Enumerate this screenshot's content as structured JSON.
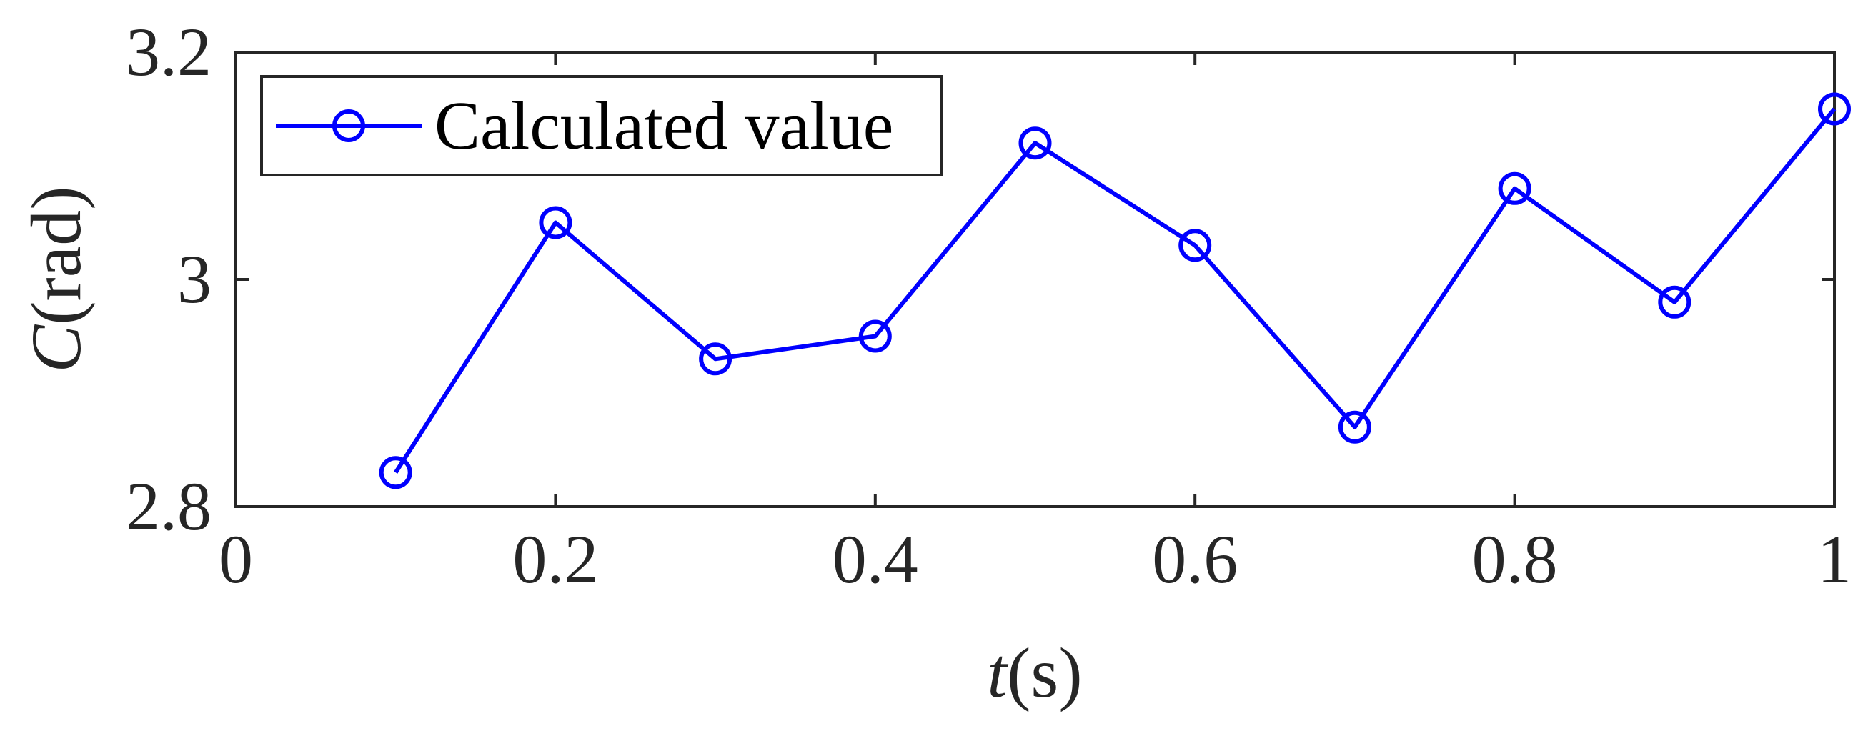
{
  "chart_data": {
    "type": "line",
    "x": [
      0.1,
      0.2,
      0.3,
      0.4,
      0.5,
      0.6,
      0.7,
      0.8,
      0.9,
      1.0
    ],
    "series": [
      {
        "name": "Calculated value",
        "values": [
          2.83,
          3.05,
          2.93,
          2.95,
          3.12,
          3.03,
          2.87,
          3.08,
          2.98,
          3.15
        ],
        "color": "#0000ff",
        "marker": "circle"
      }
    ],
    "xlim": [
      0,
      1
    ],
    "ylim": [
      2.8,
      3.2
    ],
    "xticks": [
      0,
      0.2,
      0.4,
      0.6,
      0.8,
      1
    ],
    "xtick_labels": [
      "0",
      "0.2",
      "0.4",
      "0.6",
      "0.8",
      "1"
    ],
    "yticks": [
      2.8,
      3.0,
      3.2
    ],
    "ytick_labels": [
      "2.8",
      "3",
      "3.2"
    ],
    "xlabel": {
      "var": "t",
      "unit": "(s)"
    },
    "ylabel": {
      "var": "C",
      "unit": "(rad)"
    },
    "grid": false,
    "legend_position": "top-left"
  }
}
